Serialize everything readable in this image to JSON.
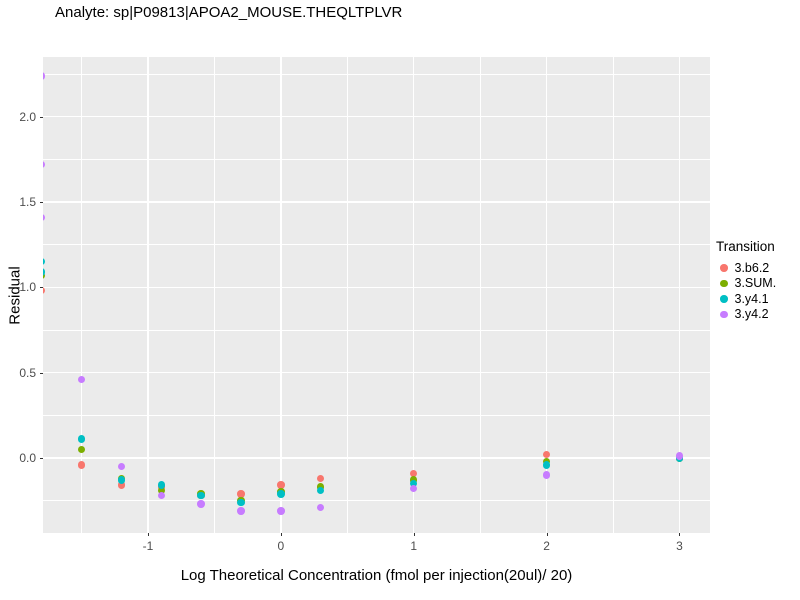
{
  "chart_data": {
    "type": "scatter",
    "title": "Analyte: sp|P09813|APOA2_MOUSE.THEQLTPLVR",
    "xlabel": "Log Theoretical Concentration (fmol per injection(20ul)/ 20)",
    "ylabel": "Residual",
    "panel_bg": "#EBEBEB",
    "grid_color": "#FFFFFF",
    "tick_label_color": "#4D4D4D",
    "xlim": [
      -1.79,
      3.23
    ],
    "ylim": [
      -0.44,
      2.35
    ],
    "x_ticks": {
      "values": [
        -1,
        0,
        1,
        2,
        3
      ],
      "labels": [
        "-1",
        "0",
        "1",
        "2",
        "3"
      ]
    },
    "y_ticks": {
      "values": [
        0,
        0.5,
        1,
        1.5,
        2
      ],
      "labels": [
        "0.0",
        "0.5",
        "1.0",
        "1.5",
        "2.0"
      ]
    },
    "x_minor": [
      -1.5,
      -0.5,
      0.5,
      1.5,
      2.5
    ],
    "y_minor": [
      -0.25,
      0.25,
      0.75,
      1.25,
      1.75,
      2.25
    ],
    "grid": true,
    "legend": {
      "title": "Transition",
      "position": "right"
    },
    "series": [
      {
        "name": "3.b6.2",
        "color": "#F8766D",
        "points": [
          [
            -1.8,
            0.98
          ],
          [
            -1.5,
            -0.04
          ],
          [
            -1.2,
            -0.16
          ],
          [
            -0.9,
            -0.17
          ],
          [
            -0.6,
            -0.22
          ],
          [
            -0.3,
            -0.21
          ],
          [
            0,
            -0.16
          ],
          [
            0.3,
            -0.12
          ],
          [
            1,
            -0.09
          ],
          [
            2,
            0.02
          ],
          [
            3,
            0.0
          ]
        ]
      },
      {
        "name": "3.SUM.",
        "color": "#7CAE00",
        "points": [
          [
            -1.8,
            1.07
          ],
          [
            -1.5,
            0.05
          ],
          [
            -1.2,
            -0.12
          ],
          [
            -0.9,
            -0.19
          ],
          [
            -0.6,
            -0.21
          ],
          [
            -0.3,
            -0.25
          ],
          [
            0,
            -0.2
          ],
          [
            0.3,
            -0.17
          ],
          [
            1,
            -0.13
          ],
          [
            2,
            -0.02
          ],
          [
            3,
            0.0
          ]
        ]
      },
      {
        "name": "3.y4.1",
        "color": "#00BFC4",
        "points": [
          [
            -1.8,
            1.15
          ],
          [
            -1.8,
            1.09
          ],
          [
            -1.5,
            0.11
          ],
          [
            -1.2,
            -0.13
          ],
          [
            -0.9,
            -0.16
          ],
          [
            -0.6,
            -0.22
          ],
          [
            -0.3,
            -0.26
          ],
          [
            0,
            -0.21
          ],
          [
            0.3,
            -0.19
          ],
          [
            1,
            -0.15
          ],
          [
            2,
            -0.04
          ],
          [
            3,
            0.0
          ]
        ]
      },
      {
        "name": "3.y4.2",
        "color": "#C77CFF",
        "points": [
          [
            -1.8,
            2.24
          ],
          [
            -1.8,
            1.72
          ],
          [
            -1.8,
            1.41
          ],
          [
            -1.5,
            0.46
          ],
          [
            -1.2,
            -0.05
          ],
          [
            -0.9,
            -0.22
          ],
          [
            -0.6,
            -0.27
          ],
          [
            -0.3,
            -0.31
          ],
          [
            0,
            -0.31
          ],
          [
            0.3,
            -0.29
          ],
          [
            1,
            -0.18
          ],
          [
            2,
            -0.1
          ],
          [
            3,
            0.01
          ]
        ]
      }
    ]
  }
}
